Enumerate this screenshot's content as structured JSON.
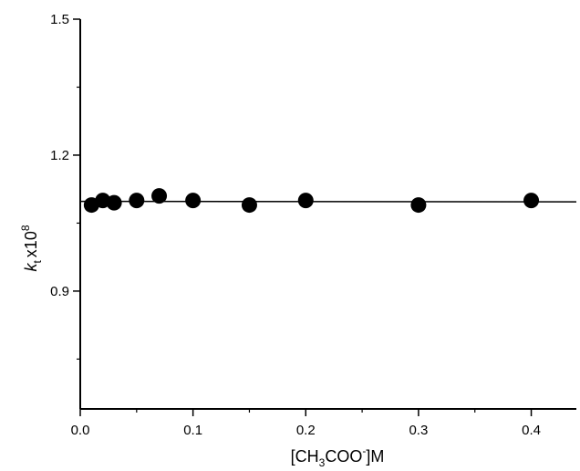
{
  "chart_data": {
    "type": "scatter",
    "xlim": [
      0.0,
      0.44
    ],
    "ylim": [
      0.64,
      1.5
    ],
    "x_ticks": [
      0.0,
      0.1,
      0.2,
      0.3,
      0.4
    ],
    "x_tick_labels": [
      "0.0",
      "0.1",
      "0.2",
      "0.3",
      "0.4"
    ],
    "y_ticks": [
      0.9,
      1.2,
      1.5
    ],
    "y_tick_labels": [
      "0.9",
      "1.2",
      "1.5"
    ],
    "x_minor_ticks": [
      0.05,
      0.15,
      0.25,
      0.35
    ],
    "y_minor_ticks": [
      0.75,
      1.05,
      1.35
    ],
    "xlabel": {
      "pre": "[CH",
      "sub": "3",
      "mid": "COO",
      "sup": "-",
      "post": "]M"
    },
    "ylabel": {
      "main": "k",
      "sub": "t",
      "times": "x10",
      "sup": "8"
    },
    "grid": false,
    "series": [
      {
        "marker": "filled-circle",
        "color": "#000000",
        "x": [
          0.01,
          0.02,
          0.03,
          0.05,
          0.07,
          0.1,
          0.15,
          0.2,
          0.3,
          0.4
        ],
        "y": [
          1.09,
          1.1,
          1.095,
          1.1,
          1.11,
          1.1,
          1.09,
          1.1,
          1.09,
          1.1
        ]
      }
    ],
    "fit_line": {
      "x": [
        0.0,
        0.44
      ],
      "y": [
        1.098,
        1.097
      ],
      "color": "#000000"
    }
  }
}
